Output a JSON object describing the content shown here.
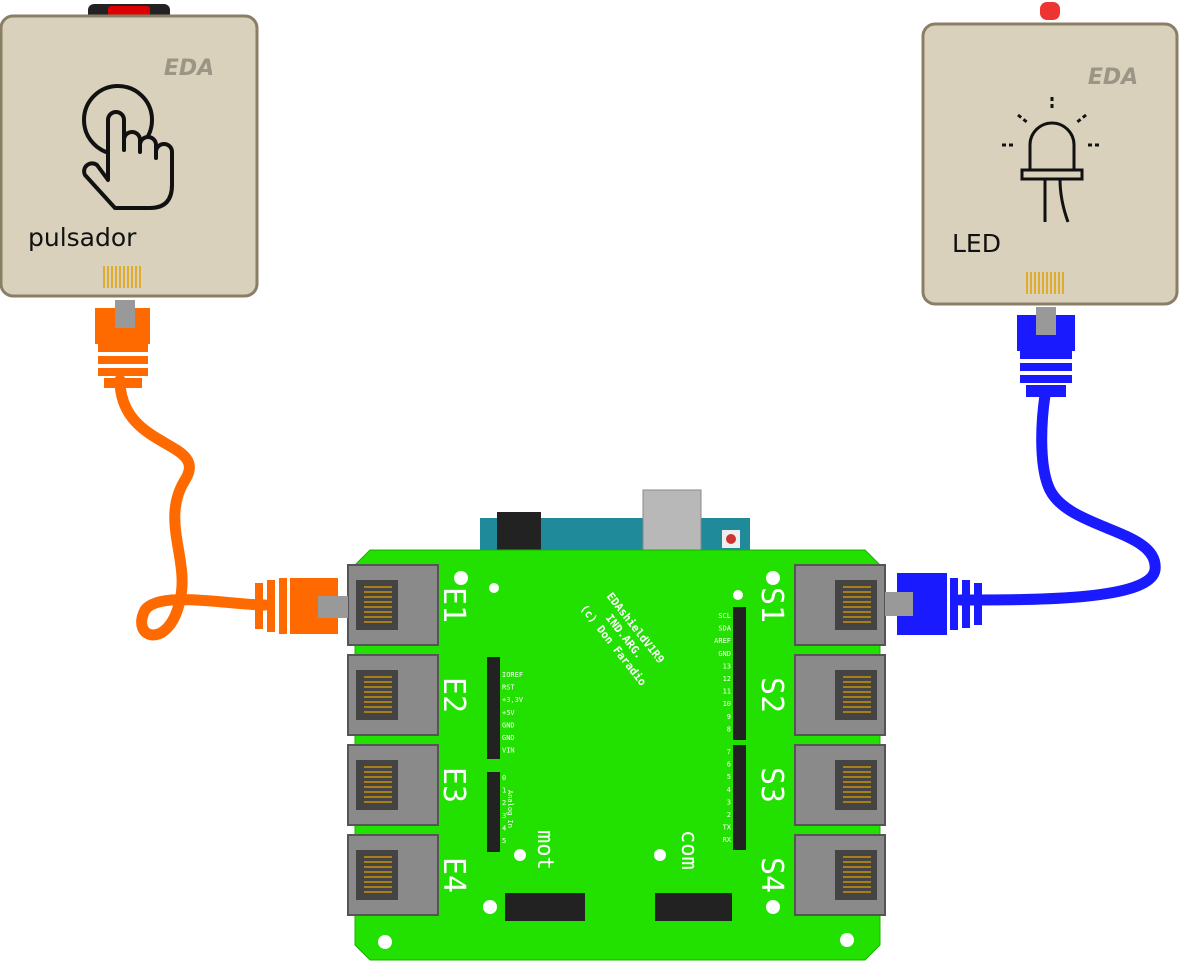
{
  "modules": [
    {
      "label": "pulsador",
      "brand": "EDA"
    },
    {
      "label": "LED",
      "brand": "EDA"
    }
  ],
  "board": {
    "name": "EDAshieldV1R9",
    "origin": "IND.ARG.",
    "credit": "(c) Don Faradio",
    "inputs": [
      "E1",
      "E2",
      "E3",
      "E4"
    ],
    "outputs": [
      "S1",
      "S2",
      "S3",
      "S4"
    ],
    "motor": "mot",
    "comm": "com",
    "power_pins": [
      "IOREF",
      "RST",
      "+3,3V",
      "+5V",
      "GND",
      "GND",
      "VIN"
    ],
    "analog_label": "Analog In",
    "analog_pins": [
      "0",
      "1",
      "2",
      "3",
      "4",
      "5"
    ],
    "digital_pins_high": [
      "SCL",
      "SDA",
      "AREF",
      "GND",
      "13",
      "12",
      "11",
      "10",
      "9",
      "8"
    ],
    "digital_pins_low": [
      "7",
      "6",
      "5",
      "4",
      "3",
      "2",
      "TX",
      "RX"
    ]
  }
}
